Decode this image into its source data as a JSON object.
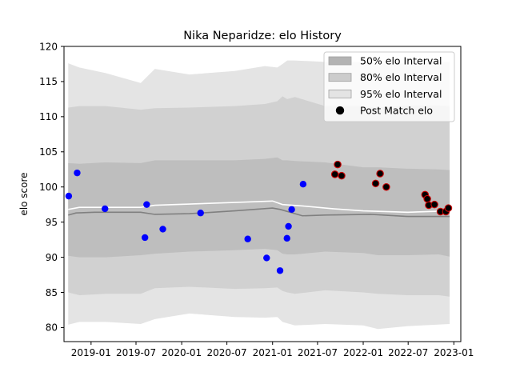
{
  "chart_data": {
    "type": "scatter",
    "title": "Nika Neparidze: elo History",
    "xlabel": "",
    "ylabel": "elo score",
    "xlim": [
      "2018-09-14",
      "2023-01-29"
    ],
    "ylim": [
      78,
      120
    ],
    "x_ticks": [
      "2019-01-01",
      "2019-07-01",
      "2020-01-01",
      "2020-07-01",
      "2021-01-01",
      "2021-07-01",
      "2022-01-01",
      "2022-07-01",
      "2023-01-01"
    ],
    "x_tick_labels": [
      "2019-01",
      "2019-07",
      "2020-01",
      "2020-07",
      "2021-01",
      "2021-07",
      "2022-01",
      "2022-07",
      "2023-01"
    ],
    "y_ticks": [
      80,
      85,
      90,
      95,
      100,
      105,
      110,
      115,
      120
    ],
    "y_tick_labels": [
      "80",
      "85",
      "90",
      "95",
      "100",
      "105",
      "110",
      "115",
      "120"
    ],
    "legend": {
      "position": "upper-right",
      "entries": [
        {
          "label": "50% elo Interval",
          "kind": "patch",
          "color": "#b3b3b3"
        },
        {
          "label": "80% elo Interval",
          "kind": "patch",
          "color": "#cccccc"
        },
        {
          "label": "95% elo Interval",
          "kind": "patch",
          "color": "#e4e4e4"
        },
        {
          "label": "Post Match elo",
          "kind": "marker",
          "color": "#000000"
        }
      ]
    },
    "colors": {
      "band_95": "#e4e4e4",
      "band_80": "#d1d1d1",
      "band_50": "#bebebe",
      "median_line": "#808080",
      "mean_line": "#ffffff",
      "point_blue": "#0000ff",
      "point_red_edge": "#cc0000"
    },
    "bands": [
      {
        "name": "95% elo Interval",
        "color_key": "band_95",
        "points": [
          {
            "x": "2018-10-01",
            "low": 80.4,
            "high": 117.6
          },
          {
            "x": "2018-11-15",
            "low": 80.8,
            "high": 117.0
          },
          {
            "x": "2019-03-01",
            "low": 80.8,
            "high": 116.2
          },
          {
            "x": "2019-07-20",
            "low": 80.5,
            "high": 114.8
          },
          {
            "x": "2019-09-15",
            "low": 81.2,
            "high": 116.8
          },
          {
            "x": "2020-02-01",
            "low": 82.0,
            "high": 116.0
          },
          {
            "x": "2020-08-01",
            "low": 81.5,
            "high": 116.5
          },
          {
            "x": "2020-12-01",
            "low": 81.4,
            "high": 117.2
          },
          {
            "x": "2021-01-20",
            "low": 81.5,
            "high": 117.0
          },
          {
            "x": "2021-02-10",
            "low": 80.8,
            "high": 117.5
          },
          {
            "x": "2021-03-01",
            "low": 80.6,
            "high": 118.0
          },
          {
            "x": "2021-04-01",
            "low": 80.3,
            "high": 118.0
          },
          {
            "x": "2021-08-01",
            "low": 80.5,
            "high": 117.8
          },
          {
            "x": "2022-01-01",
            "low": 80.3,
            "high": 117.8
          },
          {
            "x": "2022-03-01",
            "low": 79.8,
            "high": 117.5
          },
          {
            "x": "2022-07-01",
            "low": 80.2,
            "high": 117.6
          },
          {
            "x": "2022-12-15",
            "low": 80.5,
            "high": 117.8
          }
        ]
      },
      {
        "name": "80% elo Interval",
        "color_key": "band_80",
        "points": [
          {
            "x": "2018-10-01",
            "low": 85.0,
            "high": 111.3
          },
          {
            "x": "2018-11-15",
            "low": 84.6,
            "high": 111.5
          },
          {
            "x": "2019-03-01",
            "low": 84.8,
            "high": 111.5
          },
          {
            "x": "2019-07-20",
            "low": 84.8,
            "high": 111.0
          },
          {
            "x": "2019-09-15",
            "low": 85.6,
            "high": 111.2
          },
          {
            "x": "2020-02-01",
            "low": 85.8,
            "high": 111.3
          },
          {
            "x": "2020-08-01",
            "low": 85.5,
            "high": 111.5
          },
          {
            "x": "2020-12-01",
            "low": 85.6,
            "high": 111.8
          },
          {
            "x": "2021-01-20",
            "low": 85.7,
            "high": 112.2
          },
          {
            "x": "2021-02-10",
            "low": 85.2,
            "high": 112.9
          },
          {
            "x": "2021-03-01",
            "low": 85.0,
            "high": 112.5
          },
          {
            "x": "2021-04-01",
            "low": 84.8,
            "high": 112.8
          },
          {
            "x": "2021-08-01",
            "low": 85.3,
            "high": 111.5
          },
          {
            "x": "2022-01-01",
            "low": 85.0,
            "high": 111.5
          },
          {
            "x": "2022-03-01",
            "low": 84.8,
            "high": 111.3
          },
          {
            "x": "2022-07-01",
            "low": 84.6,
            "high": 111.6
          },
          {
            "x": "2022-11-01",
            "low": 84.6,
            "high": 111.6
          },
          {
            "x": "2022-12-15",
            "low": 84.4,
            "high": 111.5
          }
        ]
      },
      {
        "name": "50% elo Interval",
        "color_key": "band_50",
        "points": [
          {
            "x": "2018-10-01",
            "low": 90.2,
            "high": 103.4
          },
          {
            "x": "2018-11-15",
            "low": 90.0,
            "high": 103.3
          },
          {
            "x": "2019-03-01",
            "low": 90.0,
            "high": 103.5
          },
          {
            "x": "2019-07-20",
            "low": 90.3,
            "high": 103.4
          },
          {
            "x": "2019-09-15",
            "low": 90.5,
            "high": 103.8
          },
          {
            "x": "2020-02-01",
            "low": 90.8,
            "high": 103.8
          },
          {
            "x": "2020-08-01",
            "low": 91.0,
            "high": 103.8
          },
          {
            "x": "2020-12-01",
            "low": 91.2,
            "high": 104.0
          },
          {
            "x": "2021-01-20",
            "low": 91.0,
            "high": 104.2
          },
          {
            "x": "2021-02-10",
            "low": 90.5,
            "high": 103.8
          },
          {
            "x": "2021-03-01",
            "low": 90.4,
            "high": 103.8
          },
          {
            "x": "2021-04-01",
            "low": 90.4,
            "high": 103.7
          },
          {
            "x": "2021-08-01",
            "low": 90.8,
            "high": 103.5
          },
          {
            "x": "2022-01-01",
            "low": 90.6,
            "high": 102.8
          },
          {
            "x": "2022-03-01",
            "low": 90.3,
            "high": 102.8
          },
          {
            "x": "2022-07-01",
            "low": 90.3,
            "high": 102.6
          },
          {
            "x": "2022-11-01",
            "low": 90.4,
            "high": 102.5
          },
          {
            "x": "2022-12-15",
            "low": 90.1,
            "high": 102.4
          }
        ]
      }
    ],
    "lines": [
      {
        "role": "median",
        "color_key": "median_line",
        "points": [
          {
            "x": "2018-10-01",
            "y": 96.0
          },
          {
            "x": "2018-11-01",
            "y": 96.3
          },
          {
            "x": "2019-01-15",
            "y": 96.4
          },
          {
            "x": "2019-07-20",
            "y": 96.4
          },
          {
            "x": "2019-09-15",
            "y": 96.1
          },
          {
            "x": "2020-02-01",
            "y": 96.2
          },
          {
            "x": "2020-08-01",
            "y": 96.6
          },
          {
            "x": "2021-01-01",
            "y": 97.0
          },
          {
            "x": "2021-02-01",
            "y": 96.8
          },
          {
            "x": "2021-05-01",
            "y": 95.9
          },
          {
            "x": "2021-08-01",
            "y": 96.0
          },
          {
            "x": "2022-02-01",
            "y": 96.1
          },
          {
            "x": "2022-07-01",
            "y": 95.8
          },
          {
            "x": "2022-12-15",
            "y": 95.8
          }
        ]
      },
      {
        "role": "mean",
        "color_key": "mean_line",
        "points": [
          {
            "x": "2018-10-01",
            "y": 96.8
          },
          {
            "x": "2018-11-15",
            "y": 97.1
          },
          {
            "x": "2019-07-20",
            "y": 97.1
          },
          {
            "x": "2019-09-15",
            "y": 97.4
          },
          {
            "x": "2020-08-01",
            "y": 97.8
          },
          {
            "x": "2021-01-01",
            "y": 98.0
          },
          {
            "x": "2021-02-10",
            "y": 97.5
          },
          {
            "x": "2021-05-01",
            "y": 97.3
          },
          {
            "x": "2021-09-01",
            "y": 96.9
          },
          {
            "x": "2022-01-01",
            "y": 96.6
          },
          {
            "x": "2022-07-01",
            "y": 96.4
          },
          {
            "x": "2022-12-15",
            "y": 96.6
          }
        ]
      }
    ],
    "points": [
      {
        "x": "2018-10-03",
        "y": 98.7,
        "color_key": "point_blue"
      },
      {
        "x": "2018-11-06",
        "y": 102.0,
        "color_key": "point_blue"
      },
      {
        "x": "2019-02-26",
        "y": 96.9,
        "color_key": "point_blue"
      },
      {
        "x": "2019-08-06",
        "y": 92.8,
        "color_key": "point_blue"
      },
      {
        "x": "2019-08-13",
        "y": 97.5,
        "color_key": "point_blue"
      },
      {
        "x": "2019-10-17",
        "y": 94.0,
        "color_key": "point_blue"
      },
      {
        "x": "2020-03-17",
        "y": 96.3,
        "color_key": "point_blue"
      },
      {
        "x": "2020-09-23",
        "y": 92.6,
        "color_key": "point_blue"
      },
      {
        "x": "2020-12-08",
        "y": 89.9,
        "color_key": "point_blue"
      },
      {
        "x": "2021-01-31",
        "y": 88.1,
        "color_key": "point_blue"
      },
      {
        "x": "2021-02-28",
        "y": 92.7,
        "color_key": "point_blue"
      },
      {
        "x": "2021-03-06",
        "y": 94.4,
        "color_key": "point_blue"
      },
      {
        "x": "2021-03-19",
        "y": 96.8,
        "color_key": "point_blue"
      },
      {
        "x": "2021-05-04",
        "y": 100.4,
        "color_key": "point_blue"
      },
      {
        "x": "2021-09-09",
        "y": 101.8,
        "color_key": "point_black"
      },
      {
        "x": "2021-09-20",
        "y": 103.2,
        "color_key": "point_black"
      },
      {
        "x": "2021-10-06",
        "y": 101.6,
        "color_key": "point_black"
      },
      {
        "x": "2022-02-20",
        "y": 100.5,
        "color_key": "point_black"
      },
      {
        "x": "2022-03-10",
        "y": 101.9,
        "color_key": "point_black"
      },
      {
        "x": "2022-04-04",
        "y": 100.0,
        "color_key": "point_black"
      },
      {
        "x": "2022-09-07",
        "y": 98.9,
        "color_key": "point_black"
      },
      {
        "x": "2022-09-16",
        "y": 98.3,
        "color_key": "point_black"
      },
      {
        "x": "2022-09-22",
        "y": 97.4,
        "color_key": "point_black"
      },
      {
        "x": "2022-10-15",
        "y": 97.5,
        "color_key": "point_black"
      },
      {
        "x": "2022-11-08",
        "y": 96.5,
        "color_key": "point_black"
      },
      {
        "x": "2022-11-30",
        "y": 96.5,
        "color_key": "point_black"
      },
      {
        "x": "2022-12-10",
        "y": 97.0,
        "color_key": "point_black"
      }
    ]
  }
}
